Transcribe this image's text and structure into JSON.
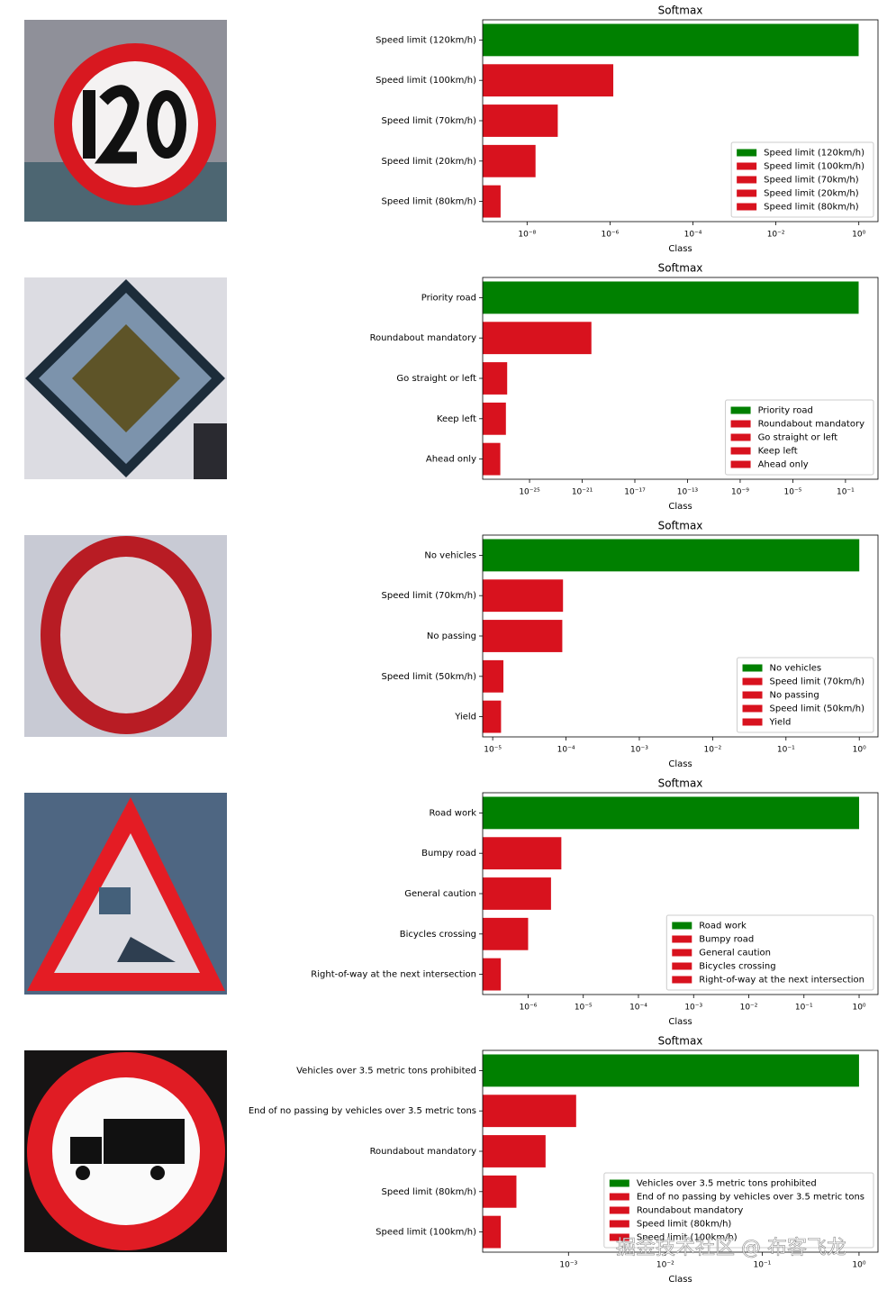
{
  "chart_data": [
    {
      "type": "barh",
      "title": "Softmax",
      "x_label": "Class",
      "xscale": "log",
      "legend": "lower right",
      "categories": [
        "Speed limit (120km/h)",
        "Speed limit (100km/h)",
        "Speed limit (70km/h)",
        "Speed limit (20km/h)",
        "Speed limit (80km/h)"
      ],
      "values": [
        0.99,
        1.2e-06,
        5.5e-08,
        1.6e-08,
        2.3e-09
      ],
      "colors": [
        "#008000",
        "#d8121e",
        "#d8121e",
        "#d8121e",
        "#d8121e"
      ],
      "xlim": [
        8.5e-10,
        2.9
      ],
      "xticks": [
        {
          "value": 1e-08,
          "label": "10⁻⁸"
        },
        {
          "value": 1e-06,
          "label": "10⁻⁶"
        },
        {
          "value": 0.0001,
          "label": "10⁻⁴"
        },
        {
          "value": 0.01,
          "label": "10⁻²"
        },
        {
          "value": 1,
          "label": "10⁰"
        }
      ]
    },
    {
      "type": "barh",
      "title": "Softmax",
      "x_label": "Class",
      "xscale": "log",
      "legend": "lower right",
      "categories": [
        "Priority road",
        "Roundabout mandatory",
        "Go straight or left",
        "Keep left",
        "Ahead only"
      ],
      "values": [
        1.0,
        5e-21,
        2e-27,
        1.6e-27,
        6e-28
      ],
      "colors": [
        "#008000",
        "#d8121e",
        "#d8121e",
        "#d8121e",
        "#d8121e"
      ],
      "xlim": [
        2.75e-29,
        29.5
      ],
      "xticks": [
        {
          "value": 1e-25,
          "label": "10⁻²⁵"
        },
        {
          "value": 1e-21,
          "label": "10⁻²¹"
        },
        {
          "value": 1e-17,
          "label": "10⁻¹⁷"
        },
        {
          "value": 1e-13,
          "label": "10⁻¹³"
        },
        {
          "value": 1e-09,
          "label": "10⁻⁹"
        },
        {
          "value": 1e-05,
          "label": "10⁻⁵"
        },
        {
          "value": 0.1,
          "label": "10⁻¹"
        }
      ]
    },
    {
      "type": "barh",
      "title": "Softmax",
      "x_label": "Class",
      "xscale": "log",
      "legend": "lower right",
      "categories": [
        "No vehicles",
        "Speed limit (70km/h)",
        "No passing",
        "Speed limit (50km/h)",
        "Yield"
      ],
      "values": [
        1.0,
        9.1e-05,
        8.9e-05,
        1.4e-05,
        1.3e-05
      ],
      "colors": [
        "#008000",
        "#d8121e",
        "#d8121e",
        "#d8121e",
        "#d8121e"
      ],
      "xlim": [
        7.3e-06,
        1.8
      ],
      "xticks": [
        {
          "value": 1e-05,
          "label": "10⁻⁵"
        },
        {
          "value": 0.0001,
          "label": "10⁻⁴"
        },
        {
          "value": 0.001,
          "label": "10⁻³"
        },
        {
          "value": 0.01,
          "label": "10⁻²"
        },
        {
          "value": 0.1,
          "label": "10⁻¹"
        },
        {
          "value": 1,
          "label": "10⁰"
        }
      ]
    },
    {
      "type": "barh",
      "title": "Softmax",
      "x_label": "Class",
      "xscale": "log",
      "legend": "lower right",
      "categories": [
        "Road work",
        "Bumpy road",
        "General caution",
        "Bicycles crossing",
        "Right-of-way at the next intersection"
      ],
      "values": [
        1.0,
        4e-06,
        2.6e-06,
        1e-06,
        3.2e-07
      ],
      "colors": [
        "#008000",
        "#d8121e",
        "#d8121e",
        "#d8121e",
        "#d8121e"
      ],
      "xlim": [
        1.5e-07,
        2.2
      ],
      "xticks": [
        {
          "value": 1e-06,
          "label": "10⁻⁶"
        },
        {
          "value": 1e-05,
          "label": "10⁻⁵"
        },
        {
          "value": 0.0001,
          "label": "10⁻⁴"
        },
        {
          "value": 0.001,
          "label": "10⁻³"
        },
        {
          "value": 0.01,
          "label": "10⁻²"
        },
        {
          "value": 0.1,
          "label": "10⁻¹"
        },
        {
          "value": 1,
          "label": "10⁰"
        }
      ]
    },
    {
      "type": "barh",
      "title": "Softmax",
      "x_label": "Class",
      "xscale": "log",
      "legend": "lower right",
      "categories": [
        "Vehicles over 3.5 metric tons prohibited",
        "End of no passing by vehicles over 3.5 metric tons",
        "Roundabout mandatory",
        "Speed limit (80km/h)",
        "Speed limit (100km/h)"
      ],
      "values": [
        1.0,
        0.0012,
        0.00058,
        0.00029,
        0.0002
      ],
      "colors": [
        "#008000",
        "#d8121e",
        "#d8121e",
        "#d8121e",
        "#d8121e"
      ],
      "xlim": [
        0.00013,
        1.57
      ],
      "xticks": [
        {
          "value": 0.001,
          "label": "10⁻³"
        },
        {
          "value": 0.01,
          "label": "10⁻²"
        },
        {
          "value": 0.1,
          "label": "10⁻¹"
        },
        {
          "value": 1,
          "label": "10⁰"
        }
      ]
    }
  ],
  "watermark": "掘金技术社区 @ 布客飞龙"
}
